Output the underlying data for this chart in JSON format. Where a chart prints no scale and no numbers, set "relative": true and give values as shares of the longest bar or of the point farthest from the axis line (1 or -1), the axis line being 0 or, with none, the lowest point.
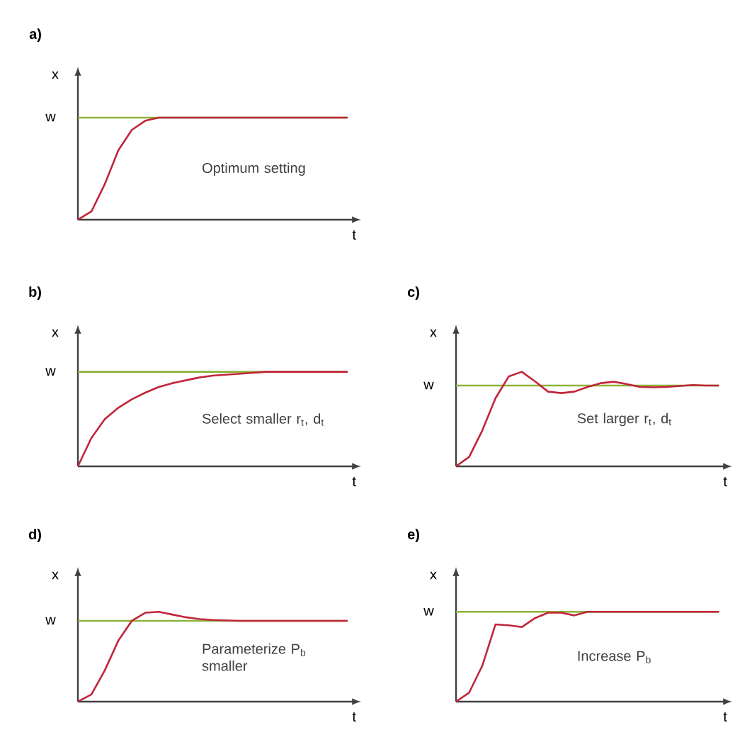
{
  "chart_data": [
    {
      "type": "line",
      "title": "a)",
      "xlabel": "t",
      "ylabel": "x",
      "relative": true,
      "categories": [
        null,
        null,
        null,
        null,
        null,
        null,
        null,
        null,
        null,
        null,
        null,
        null,
        null,
        null,
        null,
        null,
        null,
        null,
        null,
        null,
        null
      ],
      "series": [
        {
          "color": "#c0263a",
          "values": [
            0,
            0.08,
            0.35,
            0.68,
            0.88,
            0.97,
            1,
            1,
            1,
            1,
            1,
            1,
            1,
            1,
            1,
            1,
            1,
            1,
            1,
            1,
            1
          ]
        }
      ],
      "ref_lines": [
        {
          "axis": "y",
          "value": 1,
          "label": "w",
          "color": "#8db33c"
        }
      ],
      "annotations": [
        "Optimum setting"
      ]
    },
    {
      "type": "line",
      "title": "b)",
      "xlabel": "t",
      "ylabel": "x",
      "relative": true,
      "categories": [
        null,
        null,
        null,
        null,
        null,
        null,
        null,
        null,
        null,
        null,
        null,
        null,
        null,
        null,
        null,
        null,
        null,
        null,
        null,
        null,
        null
      ],
      "series": [
        {
          "color": "#c0263a",
          "values": [
            0,
            0.3,
            0.5,
            0.62,
            0.71,
            0.78,
            0.84,
            0.88,
            0.91,
            0.94,
            0.96,
            0.97,
            0.98,
            0.99,
            1,
            1,
            1,
            1,
            1,
            1,
            1
          ]
        }
      ],
      "ref_lines": [
        {
          "axis": "y",
          "value": 1,
          "label": "w",
          "color": "#8db33c"
        }
      ],
      "annotations": [
        "Select smaller r$_{t}$, d$_{t}$"
      ]
    },
    {
      "type": "line",
      "title": "c)",
      "xlabel": "t",
      "ylabel": "x",
      "relative": true,
      "categories": [
        null,
        null,
        null,
        null,
        null,
        null,
        null,
        null,
        null,
        null,
        null,
        null,
        null,
        null,
        null,
        null,
        null,
        null,
        null,
        null,
        null
      ],
      "series": [
        {
          "color": "#c0263a",
          "values": [
            0,
            0.1,
            0.38,
            0.72,
            0.95,
            1,
            0.9,
            0.79,
            0.775,
            0.79,
            0.84,
            0.88,
            0.895,
            0.87,
            0.84,
            0.836,
            0.84,
            0.85,
            0.86,
            0.855,
            0.855
          ]
        }
      ],
      "ref_lines": [
        {
          "axis": "y",
          "value": 0.855,
          "label": "w",
          "color": "#8db33c"
        }
      ],
      "annotations": [
        "Set larger r$_{t}$, d$_{t}$"
      ]
    },
    {
      "type": "line",
      "title": "d)",
      "xlabel": "t",
      "ylabel": "x",
      "relative": true,
      "categories": [
        null,
        null,
        null,
        null,
        null,
        null,
        null,
        null,
        null,
        null,
        null,
        null,
        null,
        null,
        null,
        null,
        null,
        null,
        null,
        null,
        null
      ],
      "series": [
        {
          "color": "#c0263a",
          "values": [
            0,
            0.08,
            0.35,
            0.68,
            0.9,
            0.99,
            1,
            0.97,
            0.94,
            0.92,
            0.91,
            0.905,
            0.9,
            0.9,
            0.9,
            0.9,
            0.9,
            0.9,
            0.9,
            0.9,
            0.9
          ]
        }
      ],
      "ref_lines": [
        {
          "axis": "y",
          "value": 0.9,
          "label": "w",
          "color": "#8db33c"
        }
      ],
      "annotations": [
        "Parameterize P$_{b}$ smaller"
      ]
    },
    {
      "type": "line",
      "title": "e)",
      "xlabel": "t",
      "ylabel": "x",
      "relative": true,
      "categories": [
        null,
        null,
        null,
        null,
        null,
        null,
        null,
        null,
        null,
        null,
        null,
        null,
        null,
        null,
        null,
        null,
        null,
        null,
        null,
        null,
        null
      ],
      "series": [
        {
          "color": "#c0263a",
          "values": [
            0,
            0.1,
            0.4,
            0.86,
            0.85,
            0.83,
            0.93,
            0.99,
            0.99,
            0.96,
            1,
            1,
            1,
            1,
            1,
            1,
            1,
            1,
            1,
            1,
            1
          ]
        }
      ],
      "ref_lines": [
        {
          "axis": "y",
          "value": 1,
          "label": "w",
          "color": "#8db33c"
        }
      ],
      "annotations": [
        "Increase P$_{b}$"
      ]
    }
  ]
}
